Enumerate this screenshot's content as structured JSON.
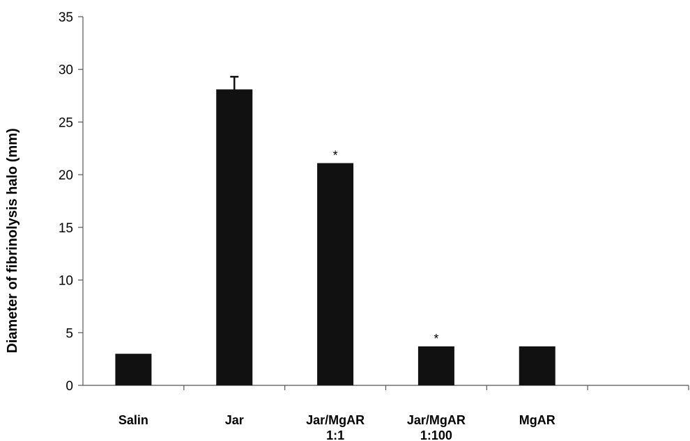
{
  "chart_data": {
    "type": "bar",
    "title": "",
    "xlabel": "",
    "ylabel": "Diameter of fibrinolysis halo (mm)",
    "ylim": [
      0,
      35
    ],
    "ytick_step": 5,
    "grid": false,
    "legend": "none",
    "bar_color": "#111111",
    "categories": [
      [
        "Salin"
      ],
      [
        "Jar"
      ],
      [
        "Jar/MgAR",
        "1:1"
      ],
      [
        "Jar/MgAR",
        "1:100"
      ],
      [
        "MgAR"
      ],
      [
        ""
      ]
    ],
    "values": [
      3.0,
      28.1,
      21.1,
      3.7,
      3.7,
      null
    ],
    "error_plus": [
      null,
      1.2,
      null,
      null,
      null,
      null
    ],
    "annotations": [
      "",
      "",
      "*",
      "*",
      "",
      ""
    ]
  }
}
